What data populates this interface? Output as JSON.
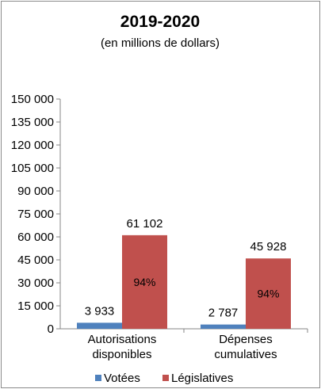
{
  "chart_data": {
    "type": "bar",
    "title": "2019-2020",
    "subtitle": "(en millions de dollars)",
    "xlabel": "",
    "ylabel": "",
    "ylim": [
      0,
      150000
    ],
    "yticks": [
      "150 000",
      "135 000",
      "120 000",
      "105 000",
      "90 000",
      "75 000",
      "60 000",
      "45 000",
      "30 000",
      "15 000",
      "0"
    ],
    "categories": [
      [
        "Autorisations",
        "disponibles"
      ],
      [
        "Dépenses",
        "cumulatives"
      ]
    ],
    "series": [
      {
        "name": "Votées",
        "color": "#4f81bd",
        "values": [
          3933,
          2787
        ],
        "labels": [
          "3 933",
          "2 787"
        ]
      },
      {
        "name": "Législatives",
        "color": "#c0504d",
        "values": [
          61102,
          45928
        ],
        "labels": [
          "61 102",
          "45 928"
        ],
        "inner_labels": [
          "94%",
          "94%"
        ]
      }
    ],
    "grid": false,
    "legend": "bottom"
  }
}
